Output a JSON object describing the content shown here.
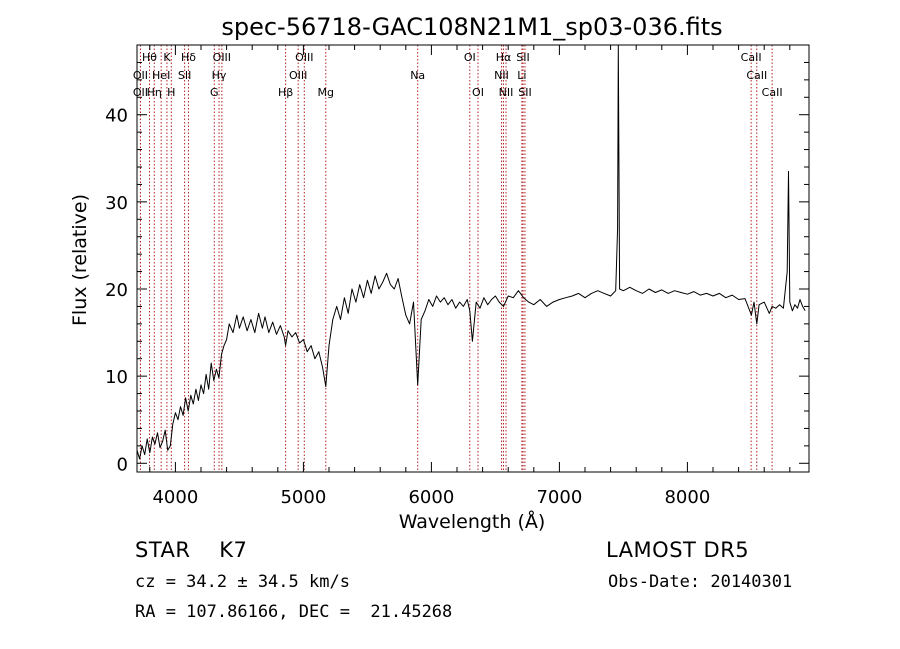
{
  "chart_data": {
    "type": "line",
    "title": "spec-56718-GAC108N21M1_sp03-036.fits",
    "xlabel": "Wavelength (Å)",
    "ylabel": "Flux (relative)",
    "xlim": [
      3700,
      8950
    ],
    "ylim": [
      -1,
      48
    ],
    "xticks": [
      4000,
      5000,
      6000,
      7000,
      8000
    ],
    "yticks": [
      0,
      10,
      20,
      30,
      40
    ],
    "grid": false,
    "line_color": "#000000",
    "marker_color": "#b22222",
    "lines": [
      {
        "w": 3727,
        "label": "OII",
        "row": 2
      },
      {
        "w": 3727,
        "label": "OII",
        "row": 3
      },
      {
        "w": 3798,
        "label": "Hθ",
        "row": 1
      },
      {
        "w": 3835,
        "label": "Hη",
        "row": 3
      },
      {
        "w": 3889,
        "label": "HeI",
        "row": 2
      },
      {
        "w": 3934,
        "label": "K",
        "row": 1
      },
      {
        "w": 3968,
        "label": "H",
        "row": 3
      },
      {
        "w": 4072,
        "label": "SII",
        "row": 2
      },
      {
        "w": 4102,
        "label": "Hδ",
        "row": 1
      },
      {
        "w": 4304,
        "label": "G",
        "row": 3
      },
      {
        "w": 4341,
        "label": "Hγ",
        "row": 2
      },
      {
        "w": 4363,
        "label": "OIII",
        "row": 1
      },
      {
        "w": 4861,
        "label": "Hβ",
        "row": 3
      },
      {
        "w": 4959,
        "label": "OIII",
        "row": 2
      },
      {
        "w": 5007,
        "label": "OIII",
        "row": 1
      },
      {
        "w": 5175,
        "label": "Mg",
        "row": 3
      },
      {
        "w": 5893,
        "label": "Na",
        "row": 2
      },
      {
        "w": 6300,
        "label": "OI",
        "row": 1
      },
      {
        "w": 6364,
        "label": "OI",
        "row": 3
      },
      {
        "w": 6548,
        "label": "NII",
        "row": 2
      },
      {
        "w": 6563,
        "label": "Hα",
        "row": 1
      },
      {
        "w": 6583,
        "label": "NII",
        "row": 3
      },
      {
        "w": 6707,
        "label": "Li",
        "row": 2
      },
      {
        "w": 6716,
        "label": "SII",
        "row": 1
      },
      {
        "w": 6731,
        "label": "SII",
        "row": 3
      },
      {
        "w": 8498,
        "label": "CaII",
        "row": 1
      },
      {
        "w": 8542,
        "label": "CaII",
        "row": 2
      },
      {
        "w": 8662,
        "label": "CaII",
        "row": 3
      }
    ],
    "series": [
      {
        "x": [
          3700,
          3720,
          3740,
          3760,
          3780,
          3800,
          3820,
          3840,
          3860,
          3880,
          3900,
          3920,
          3940,
          3960,
          3980,
          4000,
          4020,
          4040,
          4060,
          4080,
          4100,
          4120,
          4140,
          4160,
          4180,
          4200,
          4220,
          4240,
          4260,
          4280,
          4300,
          4320,
          4340,
          4360,
          4380,
          4400,
          4420,
          4450,
          4480,
          4500,
          4530,
          4560,
          4590,
          4620,
          4650,
          4680,
          4700,
          4730,
          4760,
          4790,
          4820,
          4850,
          4861,
          4880,
          4910,
          4940,
          4970,
          5000,
          5030,
          5060,
          5090,
          5120,
          5150,
          5175,
          5200,
          5230,
          5260,
          5290,
          5320,
          5350,
          5380,
          5410,
          5440,
          5470,
          5500,
          5530,
          5560,
          5590,
          5620,
          5650,
          5680,
          5710,
          5740,
          5770,
          5800,
          5830,
          5860,
          5893,
          5920,
          5950,
          5980,
          6010,
          6040,
          6070,
          6100,
          6130,
          6160,
          6190,
          6220,
          6250,
          6280,
          6300,
          6320,
          6350,
          6380,
          6410,
          6440,
          6470,
          6500,
          6530,
          6563,
          6600,
          6640,
          6680,
          6720,
          6760,
          6800,
          6850,
          6900,
          6950,
          7000,
          7050,
          7100,
          7150,
          7200,
          7250,
          7300,
          7350,
          7400,
          7440,
          7455,
          7460,
          7470,
          7500,
          7550,
          7600,
          7650,
          7700,
          7750,
          7800,
          7850,
          7900,
          7950,
          8000,
          8050,
          8100,
          8150,
          8200,
          8250,
          8300,
          8350,
          8400,
          8450,
          8500,
          8520,
          8542,
          8560,
          8600,
          8640,
          8662,
          8690,
          8720,
          8750,
          8780,
          8790,
          8800,
          8820,
          8840,
          8860,
          8880,
          8900,
          8920
        ],
        "y": [
          1.5,
          0.5,
          2.0,
          1.0,
          2.8,
          1.2,
          3.0,
          2.2,
          3.5,
          1.8,
          2.5,
          3.8,
          1.5,
          2.0,
          4.5,
          5.8,
          5.0,
          6.5,
          5.5,
          7.5,
          6.0,
          7.8,
          6.8,
          8.5,
          7.2,
          9.0,
          8.0,
          10.2,
          8.5,
          11.5,
          9.5,
          10.8,
          9.8,
          12.5,
          13.5,
          14.2,
          16.0,
          15.0,
          17.0,
          15.5,
          16.8,
          15.2,
          16.5,
          15.0,
          17.2,
          15.5,
          16.8,
          15.0,
          16.2,
          14.8,
          15.8,
          14.5,
          13.5,
          15.2,
          14.5,
          15.0,
          13.8,
          14.2,
          12.8,
          13.5,
          12.0,
          12.8,
          11.0,
          8.8,
          13.5,
          16.5,
          18.0,
          16.5,
          19.0,
          17.2,
          20.0,
          18.5,
          20.5,
          19.0,
          21.0,
          19.5,
          21.5,
          20.0,
          20.8,
          21.8,
          20.5,
          20.0,
          21.2,
          19.0,
          17.0,
          16.0,
          18.5,
          9.0,
          16.5,
          17.5,
          18.8,
          18.0,
          19.2,
          18.5,
          19.0,
          18.2,
          18.8,
          17.8,
          18.5,
          18.0,
          18.8,
          17.5,
          14.0,
          18.5,
          17.8,
          19.0,
          18.2,
          18.8,
          19.2,
          18.5,
          18.0,
          19.2,
          19.0,
          19.8,
          19.0,
          18.5,
          18.2,
          18.8,
          18.0,
          18.5,
          18.8,
          19.0,
          19.2,
          19.5,
          19.0,
          19.5,
          19.8,
          19.5,
          19.2,
          19.8,
          27.0,
          48.0,
          20.0,
          19.8,
          20.2,
          19.8,
          19.5,
          20.0,
          19.6,
          19.9,
          19.5,
          19.8,
          19.6,
          19.4,
          19.7,
          19.3,
          19.5,
          19.2,
          19.5,
          19.0,
          19.3,
          18.8,
          18.9,
          17.0,
          18.5,
          16.0,
          18.2,
          18.5,
          17.2,
          18.0,
          17.8,
          18.2,
          17.8,
          22.0,
          33.5,
          18.5,
          17.5,
          18.2,
          17.8,
          18.8,
          18.0,
          17.5
        ]
      }
    ]
  },
  "info": {
    "object_class": "STAR",
    "subclass": "K7",
    "survey": "LAMOST DR5",
    "cz": "cz = 34.2 ± 34.5 km/s",
    "obs_date": "Obs-Date: 20140301",
    "radec": "RA = 107.86166, DEC =  21.45268"
  }
}
